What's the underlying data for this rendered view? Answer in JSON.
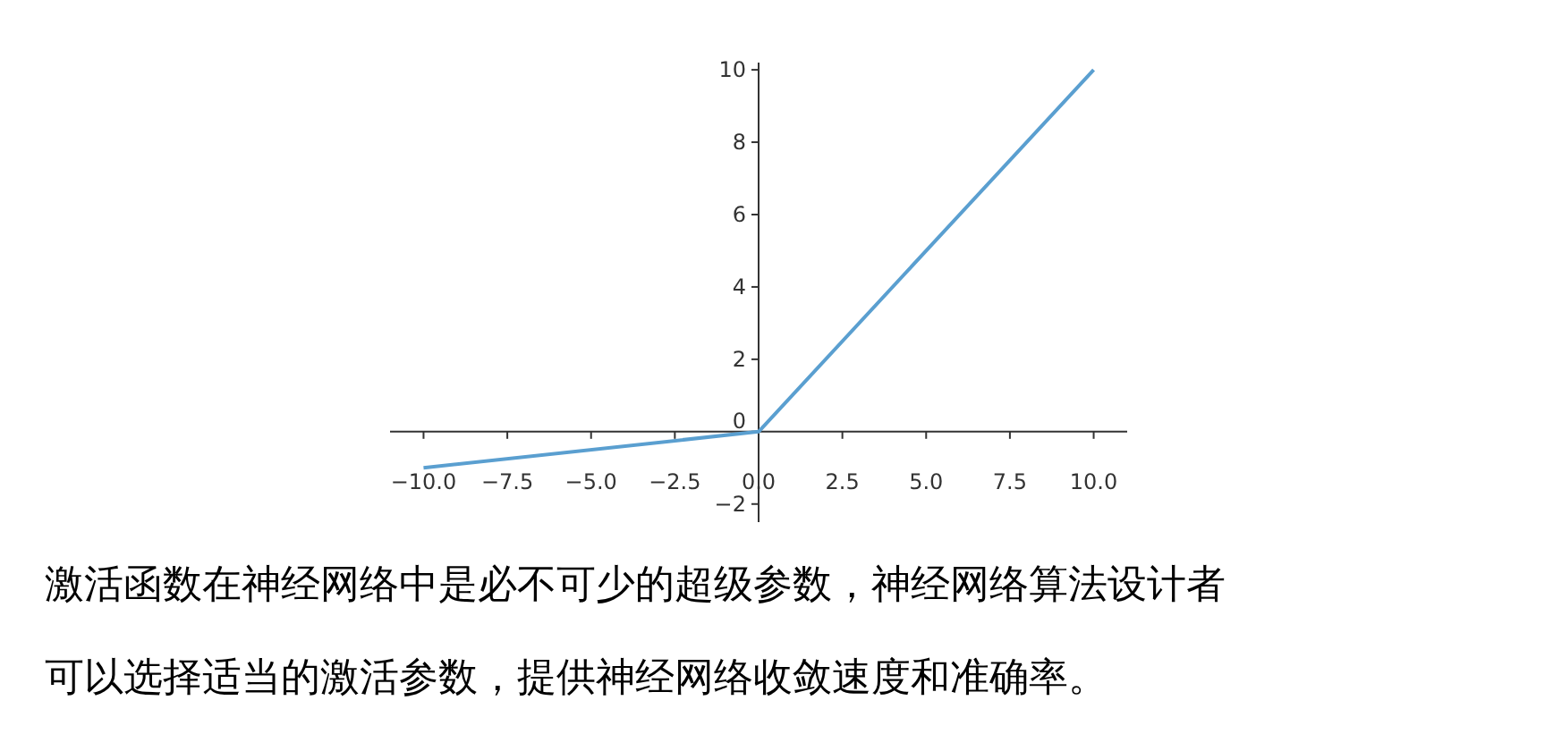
{
  "chart_data": {
    "type": "line",
    "x": [
      -10,
      0,
      10
    ],
    "series": [
      {
        "color": "#5a9fd0",
        "values": [
          -1,
          0,
          10
        ]
      }
    ],
    "xlim": [
      -11,
      11
    ],
    "ylim": [
      -2.5,
      10.2
    ],
    "xticks": [
      {
        "value": -10,
        "label": "−10.0"
      },
      {
        "value": -7.5,
        "label": "−7.5"
      },
      {
        "value": -5,
        "label": "−5.0"
      },
      {
        "value": -2.5,
        "label": "−2.5"
      },
      {
        "value": 0,
        "label": "0.0"
      },
      {
        "value": 2.5,
        "label": "2.5"
      },
      {
        "value": 5,
        "label": "5.0"
      },
      {
        "value": 7.5,
        "label": "7.5"
      },
      {
        "value": 10,
        "label": "10.0"
      }
    ],
    "yticks": [
      {
        "value": -2,
        "label": "−2"
      },
      0,
      2,
      4,
      6,
      8,
      10
    ],
    "annotations": [
      "激活函数在神经网络中是必不可少的超级参数，神经网络算法设计者",
      "可以选择适当的激活参数，提供神经网络收敛速度和准确率。"
    ]
  }
}
